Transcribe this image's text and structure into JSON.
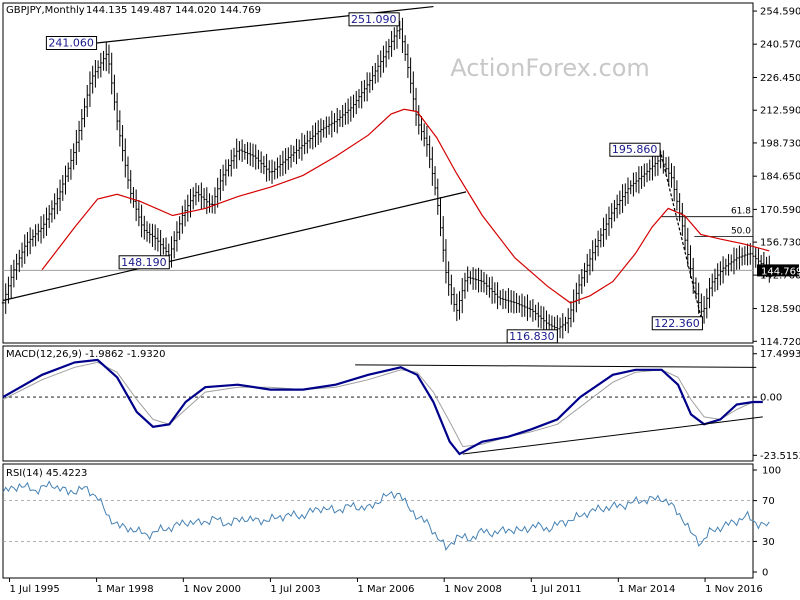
{
  "chart_data": {
    "type": "ohlc",
    "symbol": "GBPJPY,Monthly",
    "ohlc_readout": "144.135 149.487 144.020 144.769",
    "watermark": "ActionForex.com",
    "price_axis_ticks": [
      254.59,
      240.57,
      226.45,
      212.59,
      198.73,
      184.65,
      170.59,
      156.73,
      142.76,
      128.59,
      114.72
    ],
    "current_price_label": "144.769",
    "x_tick_labels": [
      "1 Jul 1995",
      "1 Mar 1998",
      "1 Nov 2000",
      "1 Jul 2003",
      "1 Mar 2006",
      "1 Nov 2008",
      "1 Jul 2011",
      "1 Mar 2014",
      "1 Nov 2016"
    ],
    "x_tick_years": [
      1995.5,
      1998.17,
      2000.83,
      2003.5,
      2006.17,
      2008.83,
      2011.5,
      2014.17,
      2016.83
    ],
    "x_range": [
      1995.3,
      2018.3
    ],
    "price_range": [
      114.0,
      258.0
    ],
    "price_path": [
      [
        1995.3,
        131
      ],
      [
        1995.6,
        144
      ],
      [
        1996.0,
        156
      ],
      [
        1996.5,
        163
      ],
      [
        1997.0,
        176
      ],
      [
        1997.5,
        196
      ],
      [
        1998.0,
        226
      ],
      [
        1998.5,
        237
      ],
      [
        1998.8,
        208
      ],
      [
        1999.2,
        178
      ],
      [
        1999.6,
        162
      ],
      [
        2000.0,
        158
      ],
      [
        2000.4,
        151
      ],
      [
        2000.8,
        168
      ],
      [
        2001.2,
        178
      ],
      [
        2001.7,
        172
      ],
      [
        2002.0,
        184
      ],
      [
        2002.5,
        196
      ],
      [
        2003.0,
        193
      ],
      [
        2003.5,
        186
      ],
      [
        2004.0,
        192
      ],
      [
        2004.5,
        198
      ],
      [
        2005.0,
        204
      ],
      [
        2005.5,
        208
      ],
      [
        2006.0,
        214
      ],
      [
        2006.5,
        224
      ],
      [
        2007.0,
        236
      ],
      [
        2007.45,
        248
      ],
      [
        2007.7,
        232
      ],
      [
        2008.0,
        208
      ],
      [
        2008.3,
        198
      ],
      [
        2008.6,
        176
      ],
      [
        2008.9,
        142
      ],
      [
        2009.2,
        127
      ],
      [
        2009.5,
        142
      ],
      [
        2010.0,
        140
      ],
      [
        2010.5,
        133
      ],
      [
        2011.0,
        131
      ],
      [
        2011.5,
        128
      ],
      [
        2012.0,
        122
      ],
      [
        2012.3,
        120
      ],
      [
        2012.6,
        123
      ],
      [
        2013.0,
        140
      ],
      [
        2013.5,
        156
      ],
      [
        2014.0,
        170
      ],
      [
        2014.5,
        180
      ],
      [
        2015.0,
        186
      ],
      [
        2015.45,
        192
      ],
      [
        2015.8,
        184
      ],
      [
        2016.1,
        166
      ],
      [
        2016.5,
        137
      ],
      [
        2016.75,
        126
      ],
      [
        2017.0,
        139
      ],
      [
        2017.4,
        146
      ],
      [
        2017.8,
        150
      ],
      [
        2018.2,
        152
      ],
      [
        2018.6,
        147
      ],
      [
        2018.8,
        144.8
      ]
    ],
    "sma": [
      [
        1996.5,
        145
      ],
      [
        1997.5,
        163
      ],
      [
        1998.2,
        175
      ],
      [
        1998.8,
        177
      ],
      [
        1999.5,
        174
      ],
      [
        2000.5,
        168
      ],
      [
        2001.5,
        171
      ],
      [
        2002.5,
        176
      ],
      [
        2003.5,
        180
      ],
      [
        2004.5,
        185
      ],
      [
        2005.5,
        193
      ],
      [
        2006.5,
        202
      ],
      [
        2007.2,
        211
      ],
      [
        2007.6,
        213
      ],
      [
        2008.0,
        212
      ],
      [
        2008.6,
        201
      ],
      [
        2009.2,
        186
      ],
      [
        2010.0,
        168
      ],
      [
        2011.0,
        150
      ],
      [
        2012.0,
        138
      ],
      [
        2012.7,
        131
      ],
      [
        2013.3,
        134
      ],
      [
        2014.0,
        140
      ],
      [
        2014.7,
        152
      ],
      [
        2015.2,
        163
      ],
      [
        2015.7,
        171
      ],
      [
        2016.2,
        168
      ],
      [
        2016.7,
        160
      ],
      [
        2017.3,
        158
      ],
      [
        2018.0,
        156
      ],
      [
        2018.8,
        153
      ]
    ],
    "lines": [
      {
        "from": [
          1998.17,
          241.06
        ],
        "to": [
          2008.5,
          256.5
        ]
      },
      {
        "from": [
          1995.3,
          132
        ],
        "to": [
          2009.5,
          178
        ]
      },
      {
        "from": [
          2015.45,
          195.86
        ],
        "to": [
          2016.75,
          122.36
        ],
        "style": "dotted"
      }
    ],
    "fib_levels": [
      {
        "label": "61.8",
        "value": 167.5,
        "from": 2015.5
      },
      {
        "label": "50.0",
        "value": 159.1,
        "from": 2016.5
      }
    ],
    "annotations": [
      {
        "label": "241.060",
        "x": 1998.17,
        "y": 241.06,
        "side": "left"
      },
      {
        "label": "251.090",
        "x": 2007.45,
        "y": 251.09,
        "side": "left"
      },
      {
        "label": "148.190",
        "x": 2000.4,
        "y": 148.19,
        "side": "left"
      },
      {
        "label": "116.830",
        "x": 2012.3,
        "y": 116.83,
        "side": "left"
      },
      {
        "label": "195.860",
        "x": 2015.45,
        "y": 195.86,
        "side": "left"
      },
      {
        "label": "122.360",
        "x": 2016.75,
        "y": 122.36,
        "side": "left"
      }
    ],
    "macd": {
      "label": "MACD(12,26,9) -1.9862 -1.9320",
      "ticks": [
        17.4993,
        0.0,
        -23.5153
      ],
      "tick_labels": [
        "17.4993",
        "0.00",
        "-23.5153"
      ],
      "range": [
        -25.0,
        19.0
      ],
      "main": [
        [
          1995.3,
          0
        ],
        [
          1996.5,
          9
        ],
        [
          1997.5,
          14
        ],
        [
          1998.2,
          15
        ],
        [
          1998.8,
          8
        ],
        [
          1999.4,
          -6
        ],
        [
          1999.9,
          -12
        ],
        [
          2000.4,
          -11
        ],
        [
          2000.9,
          -2
        ],
        [
          2001.5,
          4
        ],
        [
          2002.5,
          5
        ],
        [
          2003.5,
          3
        ],
        [
          2004.5,
          3
        ],
        [
          2005.5,
          5
        ],
        [
          2006.5,
          9
        ],
        [
          2007.5,
          12
        ],
        [
          2008.0,
          9
        ],
        [
          2008.5,
          -2
        ],
        [
          2009.0,
          -18
        ],
        [
          2009.3,
          -23
        ],
        [
          2010.0,
          -18
        ],
        [
          2010.8,
          -16
        ],
        [
          2011.5,
          -13
        ],
        [
          2012.3,
          -9
        ],
        [
          2013.0,
          0
        ],
        [
          2014.0,
          9
        ],
        [
          2014.7,
          11
        ],
        [
          2015.5,
          11
        ],
        [
          2016.0,
          5
        ],
        [
          2016.4,
          -7
        ],
        [
          2016.8,
          -11
        ],
        [
          2017.3,
          -9
        ],
        [
          2017.8,
          -3
        ],
        [
          2018.3,
          -2
        ],
        [
          2018.6,
          -2
        ]
      ],
      "signal": [
        [
          1995.3,
          -1
        ],
        [
          1996.5,
          7
        ],
        [
          1997.5,
          12
        ],
        [
          1998.2,
          14
        ],
        [
          1998.8,
          10
        ],
        [
          1999.4,
          -1
        ],
        [
          1999.9,
          -9
        ],
        [
          2000.4,
          -11
        ],
        [
          2000.9,
          -5
        ],
        [
          2001.5,
          2
        ],
        [
          2002.5,
          4
        ],
        [
          2003.5,
          4
        ],
        [
          2004.5,
          3
        ],
        [
          2005.5,
          4
        ],
        [
          2006.5,
          7
        ],
        [
          2007.5,
          11
        ],
        [
          2008.0,
          10
        ],
        [
          2008.5,
          2
        ],
        [
          2009.0,
          -10
        ],
        [
          2009.4,
          -20
        ],
        [
          2010.0,
          -19
        ],
        [
          2010.8,
          -16
        ],
        [
          2011.5,
          -14
        ],
        [
          2012.3,
          -11
        ],
        [
          2013.0,
          -4
        ],
        [
          2014.0,
          6
        ],
        [
          2014.7,
          10
        ],
        [
          2015.5,
          11
        ],
        [
          2016.0,
          8
        ],
        [
          2016.4,
          -1
        ],
        [
          2016.8,
          -8
        ],
        [
          2017.3,
          -9
        ],
        [
          2017.8,
          -5
        ],
        [
          2018.3,
          -2
        ],
        [
          2018.6,
          -2
        ]
      ],
      "lines": [
        {
          "from": [
            2006.1,
            13
          ],
          "to": [
            2018.4,
            12
          ]
        },
        {
          "from": [
            2009.4,
            -23
          ],
          "to": [
            2018.6,
            -8
          ]
        }
      ]
    },
    "rsi": {
      "label": "RSI(14) 45.4223",
      "ticks": [
        100,
        70,
        30,
        0
      ],
      "tick_labels": [
        "100",
        "70",
        "30",
        "0"
      ],
      "range": [
        0,
        100
      ],
      "dashed_levels": [
        70,
        30
      ],
      "values": [
        [
          1995.3,
          78
        ],
        [
          1995.8,
          85
        ],
        [
          1996.3,
          80
        ],
        [
          1996.8,
          86
        ],
        [
          1997.3,
          78
        ],
        [
          1997.8,
          82
        ],
        [
          1998.2,
          74
        ],
        [
          1998.5,
          55
        ],
        [
          1998.9,
          44
        ],
        [
          1999.3,
          42
        ],
        [
          1999.7,
          36
        ],
        [
          2000.1,
          41
        ],
        [
          2000.5,
          44
        ],
        [
          2000.9,
          49
        ],
        [
          2001.3,
          48
        ],
        [
          2001.8,
          52
        ],
        [
          2002.2,
          47
        ],
        [
          2002.7,
          53
        ],
        [
          2003.1,
          50
        ],
        [
          2003.6,
          52
        ],
        [
          2004.0,
          56
        ],
        [
          2004.5,
          55
        ],
        [
          2005.0,
          63
        ],
        [
          2005.5,
          60
        ],
        [
          2006.0,
          65
        ],
        [
          2006.5,
          62
        ],
        [
          2007.0,
          74
        ],
        [
          2007.45,
          78
        ],
        [
          2007.7,
          64
        ],
        [
          2008.0,
          55
        ],
        [
          2008.3,
          48
        ],
        [
          2008.6,
          36
        ],
        [
          2008.9,
          22
        ],
        [
          2009.2,
          35
        ],
        [
          2009.6,
          32
        ],
        [
          2010.0,
          40
        ],
        [
          2010.4,
          38
        ],
        [
          2010.8,
          42
        ],
        [
          2011.2,
          40
        ],
        [
          2011.6,
          46
        ],
        [
          2012.0,
          42
        ],
        [
          2012.4,
          48
        ],
        [
          2012.8,
          52
        ],
        [
          2013.2,
          58
        ],
        [
          2013.6,
          62
        ],
        [
          2014.0,
          64
        ],
        [
          2014.4,
          66
        ],
        [
          2014.8,
          70
        ],
        [
          2015.2,
          71
        ],
        [
          2015.5,
          73
        ],
        [
          2015.8,
          65
        ],
        [
          2016.1,
          55
        ],
        [
          2016.4,
          38
        ],
        [
          2016.7,
          28
        ],
        [
          2017.0,
          40
        ],
        [
          2017.4,
          45
        ],
        [
          2017.8,
          50
        ],
        [
          2018.1,
          55
        ],
        [
          2018.4,
          48
        ],
        [
          2018.8,
          45
        ]
      ]
    },
    "colors": {
      "price": "#000000",
      "sma": "#d40000",
      "macd_main": "#00008b",
      "macd_signal": "#a0a0a0",
      "rsi": "#4682b4",
      "price_label_bg": "#000000",
      "price_label_text": "#ffffff",
      "annotation_text": "#1a1a8c"
    }
  }
}
